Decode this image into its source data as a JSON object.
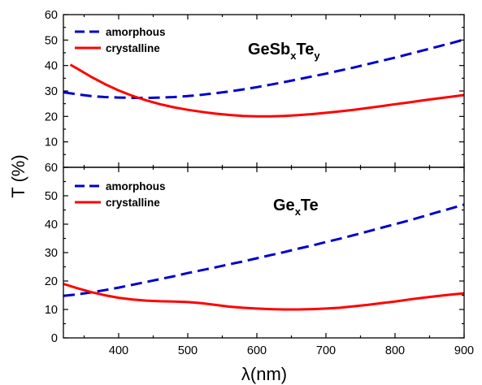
{
  "chart_data": [
    {
      "type": "line",
      "panel": "top",
      "annotation": {
        "base": "GeSb",
        "sub1": "x",
        "mid": "Te",
        "sub2": "y"
      },
      "ylabel": "T (%)",
      "xlim": [
        320,
        900
      ],
      "ylim": [
        0,
        60
      ],
      "yticks": [
        "10",
        "20",
        "30",
        "40",
        "50",
        "60"
      ],
      "legend": "top-left",
      "series": [
        {
          "name": "amorphous",
          "color": "#0000cc",
          "dash": "dashed",
          "x": [
            320,
            340,
            360,
            380,
            400,
            420,
            440,
            460,
            480,
            500,
            520,
            540,
            560,
            580,
            600,
            620,
            640,
            660,
            680,
            700,
            720,
            740,
            760,
            780,
            800,
            820,
            840,
            860,
            880,
            900
          ],
          "y": [
            29.5,
            28.7,
            28.0,
            27.6,
            27.4,
            27.3,
            27.3,
            27.4,
            27.6,
            28.0,
            28.5,
            29.1,
            29.8,
            30.6,
            31.5,
            32.5,
            33.5,
            34.6,
            35.7,
            36.8,
            38.0,
            39.2,
            40.5,
            41.8,
            43.1,
            44.5,
            45.9,
            47.3,
            48.7,
            50.2
          ]
        },
        {
          "name": "crystalline",
          "color": "#ff0000",
          "dash": "solid",
          "x": [
            330,
            340,
            360,
            380,
            400,
            420,
            440,
            460,
            480,
            500,
            520,
            540,
            560,
            580,
            600,
            620,
            640,
            660,
            680,
            700,
            720,
            740,
            760,
            780,
            800,
            820,
            840,
            860,
            880,
            900
          ],
          "y": [
            40.3,
            38.8,
            35.6,
            32.7,
            30.2,
            28.1,
            26.3,
            24.8,
            23.6,
            22.6,
            21.8,
            21.1,
            20.6,
            20.2,
            20.0,
            20.0,
            20.2,
            20.5,
            20.9,
            21.4,
            22.0,
            22.6,
            23.3,
            24.0,
            24.8,
            25.5,
            26.3,
            27.0,
            27.7,
            28.4
          ]
        }
      ]
    },
    {
      "type": "line",
      "panel": "bottom",
      "annotation": {
        "base": "Ge",
        "sub1": "x",
        "mid": "Te",
        "sub2": ""
      },
      "xlabel": "λ(nm)",
      "xlim": [
        320,
        900
      ],
      "ylim": [
        0,
        60
      ],
      "xticks": [
        "400",
        "500",
        "600",
        "700",
        "800",
        "900"
      ],
      "xtick_values": [
        400,
        500,
        600,
        700,
        800,
        900
      ],
      "yticks": [
        "0",
        "10",
        "20",
        "30",
        "40",
        "50",
        "60"
      ],
      "legend": "top-left",
      "series": [
        {
          "name": "amorphous",
          "color": "#0000cc",
          "dash": "dashed",
          "x": [
            320,
            340,
            360,
            380,
            400,
            420,
            440,
            460,
            480,
            500,
            520,
            540,
            560,
            580,
            600,
            620,
            640,
            660,
            680,
            700,
            720,
            740,
            760,
            780,
            800,
            820,
            840,
            860,
            880,
            900
          ],
          "y": [
            14.8,
            15.3,
            16.0,
            16.8,
            17.7,
            18.7,
            19.7,
            20.7,
            21.7,
            22.8,
            23.8,
            24.8,
            25.9,
            26.9,
            28.0,
            29.1,
            30.2,
            31.4,
            32.5,
            33.7,
            34.9,
            36.1,
            37.4,
            38.7,
            40.0,
            41.3,
            42.7,
            44.1,
            45.5,
            46.9
          ]
        },
        {
          "name": "crystalline",
          "color": "#ff0000",
          "dash": "solid",
          "x": [
            320,
            340,
            360,
            380,
            400,
            420,
            440,
            460,
            480,
            500,
            520,
            540,
            560,
            580,
            600,
            620,
            640,
            660,
            680,
            700,
            720,
            740,
            760,
            780,
            800,
            820,
            840,
            860,
            880,
            900
          ],
          "y": [
            19.0,
            17.5,
            16.1,
            15.0,
            14.1,
            13.5,
            13.1,
            12.9,
            12.8,
            12.6,
            12.2,
            11.6,
            11.0,
            10.6,
            10.3,
            10.1,
            10.0,
            10.0,
            10.1,
            10.3,
            10.6,
            11.1,
            11.6,
            12.2,
            12.8,
            13.5,
            14.1,
            14.7,
            15.2,
            15.7
          ]
        }
      ]
    }
  ]
}
